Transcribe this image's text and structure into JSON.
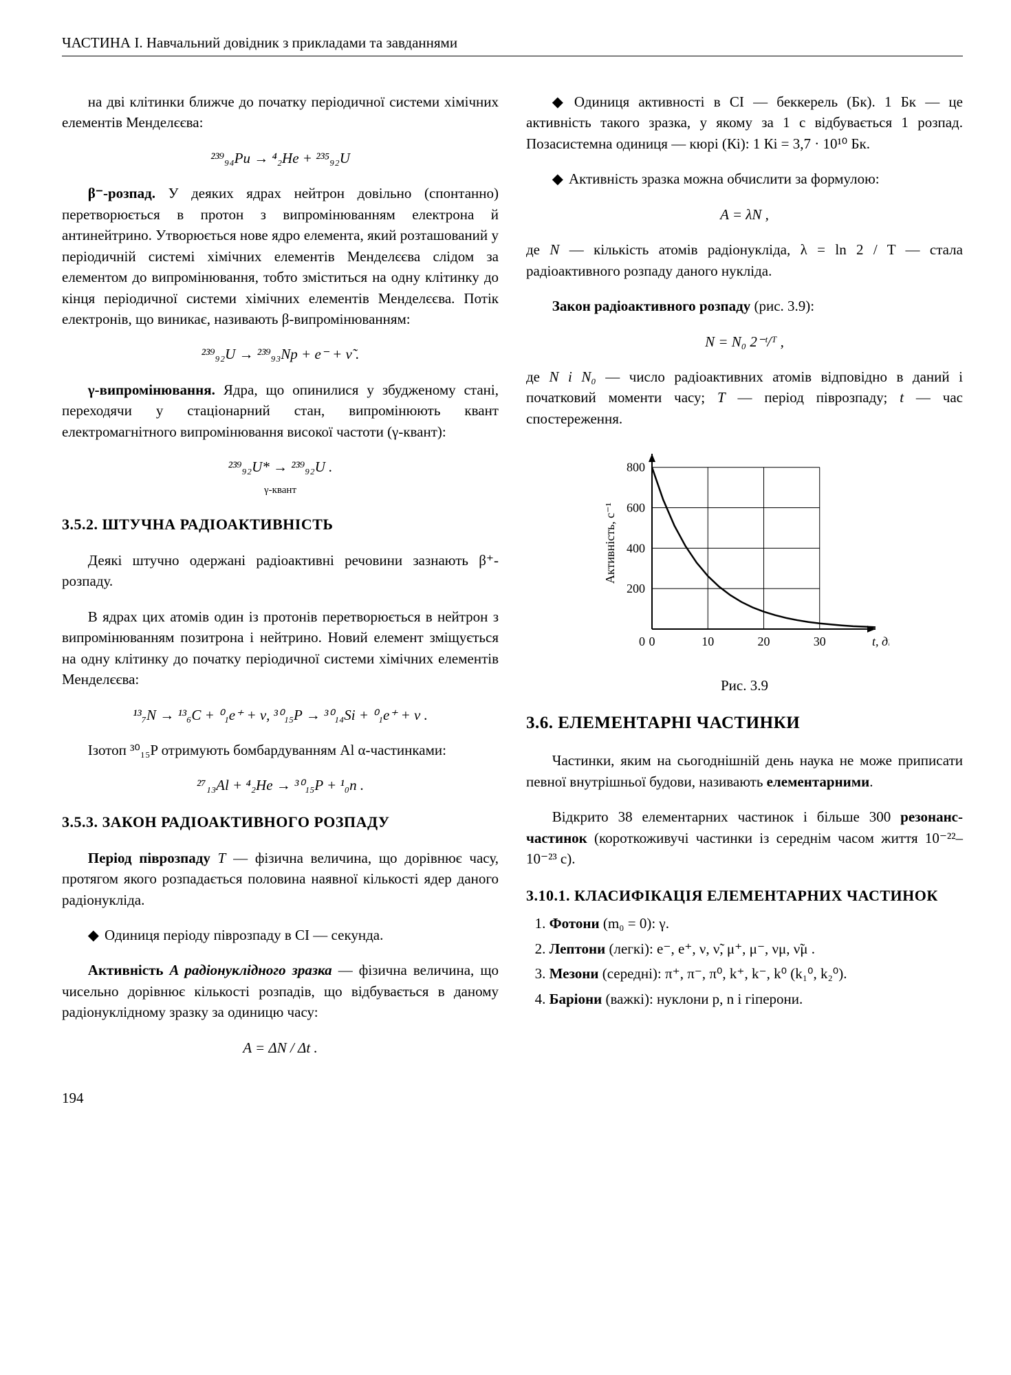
{
  "header": "ЧАСТИНА І. Навчальний довідник з прикладами та завданнями",
  "page_number": "194",
  "left": {
    "p1": "на дві клітинки ближче до початку періодичної системи хімічних елементів Менделєєва:",
    "f1": "²³⁹₉₄Pu → ⁴₂He + ²³⁵₉₂U",
    "p2a": "β⁻-розпад.",
    "p2b": " У деяких ядрах нейтрон довільно (спонтанно) перетворюється в протон з випромінюванням електрона й антинейтрино. Утворюється нове ядро елемента, який розташований у періодичній системі хімічних елементів Менделєєва слідом за елементом до випромінювання, тобто зміститься на одну клітинку до кінця періодичної системи хімічних елементів Менделєєва. Потік електронів, що виникає, називають β-випромінюванням:",
    "f2": "²³⁹₉₂U → ²³⁹₉₃Np + e⁻ + ν̃ .",
    "p3a": "γ-випромінювання.",
    "p3b": " Ядра, що опинилися у збудженому стані, переходячи у стаціонарний стан, випромінюють квант електромагнітного випромінювання високої частоти (γ-квант):",
    "f3": "²³⁹₉₂U*  →  ²³⁹₉₂U .",
    "f3sub": "γ-квант",
    "h352": "3.5.2. ШТУЧНА РАДІОАКТИВНІСТЬ",
    "p4": "Деякі штучно одержані радіоактивні речовини зазнають β⁺-розпаду.",
    "p5": "В ядрах цих атомів один із протонів перетворюється в нейтрон з випромінюванням позитрона і нейтрино. Новий елемент зміщується на одну клітинку до початку періодичної системи хімічних елементів Менделєєва:",
    "f4": "¹³₇N → ¹³₆C + ⁰₁e⁺ + ν,   ³⁰₁₅P → ³⁰₁₄Si + ⁰₁e⁺ + ν .",
    "p6": "Ізотоп ³⁰₁₅P отримують бомбардуванням Al α-частинками:",
    "f5": "²⁷₁₃Al + ⁴₂He → ³⁰₁₅P + ¹₀n .",
    "h353": "3.5.3. ЗАКОН РАДІОАКТИВНОГО РОЗПАДУ",
    "p7a": "Період піврозпаду ",
    "p7b": "T",
    "p7c": " — фізична величина, що дорівнює часу, протягом якого розпадається половина наявної кількості ядер даного радіонукліда.",
    "p8": "Одиниця періоду піврозпаду в СІ — секунда.",
    "p9a": "Активність ",
    "p9b": "A радіонуклідного зразка",
    "p9c": " — фізична величина, що чисельно дорівнює кількості розпадів, що відбувається в даному радіонуклідному зразку за одиницю часу:",
    "f6": "A = ΔN / Δt ."
  },
  "right": {
    "p1": "Одиниця активності в СІ — беккерель (Бк). 1 Бк — це активність такого зразка, у якому за 1 с відбувається 1 розпад. Позасистемна одиниця — кюрі (Кі): 1 Кі = 3,7 · 10¹⁰ Бк.",
    "p2": "Активність зразка можна обчислити за формулою:",
    "f1": "A = λN ,",
    "p3a": "де ",
    "p3b": "N",
    "p3c": " — кількість атомів радіонукліда, λ = ln 2 / T — стала радіоактивного розпаду даного нукліда.",
    "p4a": "Закон радіоактивного розпаду",
    "p4b": " (рис. 3.9):",
    "f2": "N = N₀ 2⁻ᵗ/ᵀ ,",
    "p5a": "де ",
    "p5b": "N і N₀",
    "p5c": " — число радіоактивних атомів відповідно в даний і початковий моменти часу; ",
    "p5d": "T",
    "p5e": " — період піврозпаду; ",
    "p5f": "t",
    "p5g": " — час спостереження.",
    "chart": {
      "type": "line",
      "x_label": "t, діб",
      "y_label": "Активність, с⁻¹",
      "xlim": [
        0,
        40
      ],
      "ylim": [
        0,
        850
      ],
      "x_ticks": [
        0,
        10,
        20,
        30
      ],
      "y_ticks": [
        0,
        200,
        400,
        600,
        800
      ],
      "curve_color": "#000000",
      "grid_color": "#000000",
      "background": "#ffffff",
      "line_width": 2.5,
      "font_size": 18,
      "points": [
        {
          "x": 0,
          "y": 800
        },
        {
          "x": 2,
          "y": 640
        },
        {
          "x": 4,
          "y": 512
        },
        {
          "x": 6,
          "y": 410
        },
        {
          "x": 8,
          "y": 328
        },
        {
          "x": 10,
          "y": 262
        },
        {
          "x": 12,
          "y": 210
        },
        {
          "x": 14,
          "y": 168
        },
        {
          "x": 16,
          "y": 134
        },
        {
          "x": 18,
          "y": 107
        },
        {
          "x": 20,
          "y": 86
        },
        {
          "x": 22,
          "y": 69
        },
        {
          "x": 24,
          "y": 55
        },
        {
          "x": 26,
          "y": 44
        },
        {
          "x": 28,
          "y": 35
        },
        {
          "x": 30,
          "y": 28
        },
        {
          "x": 32,
          "y": 23
        },
        {
          "x": 34,
          "y": 18
        },
        {
          "x": 36,
          "y": 14
        },
        {
          "x": 38,
          "y": 12
        },
        {
          "x": 40,
          "y": 9
        }
      ]
    },
    "fig_caption": "Рис. 3.9",
    "h36": "3.6. ЕЛЕМЕНТАРНІ ЧАСТИНКИ",
    "p6a": "Частинки, яким на сьогоднішній день наука не може приписати певної внутрішньої будови, називають ",
    "p6b": "елементарними",
    "p6c": ".",
    "p7a": "Відкрито 38 елементарних частинок і більше 300 ",
    "p7b": "резонанс-частинок",
    "p7c": " (короткоживучі частинки із середнім часом життя 10⁻²²–10⁻²³ с).",
    "h3101": "3.10.1. КЛАСИФІКАЦІЯ ЕЛЕМЕНТАРНИХ ЧАСТИНОК",
    "li1a": "Фотони",
    "li1b": " (m₀ = 0): γ.",
    "li2a": "Лептони",
    "li2b": " (легкі): e⁻, e⁺, ν, ν̃, μ⁺, μ⁻, νμ, ν̃μ .",
    "li3a": "Мезони",
    "li3b": " (середні): π⁺, π⁻, π⁰, k⁺, k⁻, k⁰ (k₁⁰, k₂⁰).",
    "li4a": "Баріони",
    "li4b": " (важкі): нуклони p, n і гіперони."
  }
}
